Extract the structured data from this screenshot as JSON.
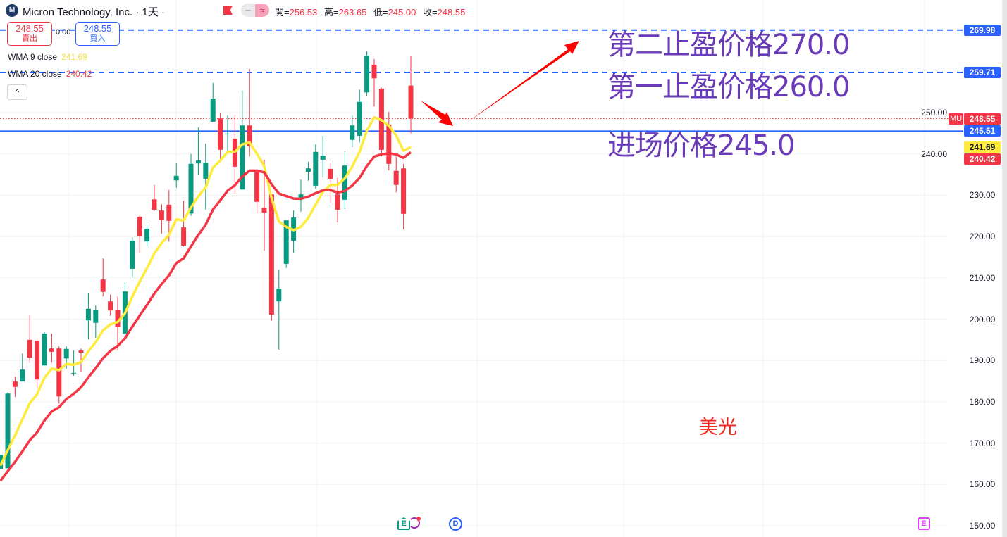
{
  "header": {
    "logo_text": "M",
    "title": "Micron Technology, Inc. · 1天 ·",
    "ohlc": [
      {
        "label": "開=",
        "value": "256.53"
      },
      {
        "label": "高=",
        "value": "263.65"
      },
      {
        "label": "低=",
        "value": "245.00"
      },
      {
        "label": "收=",
        "value": "248.55"
      }
    ],
    "pill_left": "‒",
    "pill_right": "≈"
  },
  "trade": {
    "sell_price": "248.55",
    "sell_label": "賣出",
    "spread": "0.00",
    "buy_price": "248.55",
    "buy_label": "買入"
  },
  "legend": [
    {
      "name": "WMA 9 close",
      "value": "241.69",
      "color": "#ffeb3b"
    },
    {
      "name": "WMA 20 close",
      "value": "240.42",
      "color": "#f23645"
    }
  ],
  "collapse_icon": "^",
  "annotations": {
    "tp2": "第二止盈价格270.0",
    "tp1": "第一止盈价格260.0",
    "entry": "进场价格245.0",
    "name_cn": "美光"
  },
  "price_labels": {
    "symbol": "MU",
    "tp2": "269.98",
    "tp1": "259.71",
    "last": "248.55",
    "entry": "245.51",
    "wma9": "241.69",
    "wma20": "240.42"
  },
  "events": {
    "earnings": "E",
    "dividend": "D",
    "split_earnings": "E"
  },
  "colors": {
    "up": "#089981",
    "down": "#f23645",
    "line": "#2962ff",
    "wma9": "#ffeb3b",
    "wma20": "#f23645",
    "annotation": "#6a3bb8"
  },
  "chart_data": {
    "type": "candlestick",
    "ylim": [
      148,
      272
    ],
    "y_ticks": [
      "150.00",
      "160.00",
      "170.00",
      "180.00",
      "190.00",
      "200.00",
      "210.00",
      "220.00",
      "230.00",
      "240.00",
      "250.00"
    ],
    "grid": true,
    "horizontal_lines": [
      {
        "value": 269.98,
        "style": "dashed"
      },
      {
        "value": 259.71,
        "style": "dashed"
      },
      {
        "value": 245.51,
        "style": "solid"
      },
      {
        "value": 248.55,
        "style": "dotted"
      }
    ],
    "candles": [
      [
        163.8,
        167.2,
        163.8,
        167.2
      ],
      [
        163.9,
        182.3,
        163.9,
        182.0
      ],
      [
        184.9,
        186.1,
        181.2,
        183.6
      ],
      [
        184.9,
        191.7,
        184.9,
        187.8
      ],
      [
        195.0,
        200.9,
        189.4,
        190.7
      ],
      [
        194.8,
        195.3,
        183.2,
        185.4
      ],
      [
        188.8,
        196.8,
        188.8,
        196.5
      ],
      [
        192.9,
        196.5,
        189.5,
        192.1
      ],
      [
        192.9,
        193.4,
        179.5,
        181.3
      ],
      [
        190.5,
        193.4,
        188.0,
        192.8
      ],
      [
        187.0,
        192.4,
        186.3,
        187.0
      ],
      [
        192.4,
        192.9,
        187.3,
        191.9
      ],
      [
        199.7,
        206.4,
        195.1,
        202.5
      ],
      [
        199.1,
        203.3,
        195.5,
        202.3
      ],
      [
        209.6,
        214.7,
        205.5,
        206.6
      ],
      [
        204.3,
        205.9,
        200.8,
        202.1
      ],
      [
        202.3,
        205.5,
        192.4,
        198.2
      ],
      [
        196.5,
        208.9,
        195.5,
        206.7
      ],
      [
        212.2,
        219.8,
        210.0,
        219.0
      ],
      [
        224.8,
        225.0,
        216.0,
        220.0
      ],
      [
        218.8,
        222.9,
        217.6,
        221.9
      ],
      [
        229.0,
        232.5,
        226.2,
        226.5
      ],
      [
        226.3,
        227.8,
        220.7,
        224.0
      ],
      [
        227.7,
        231.3,
        218.8,
        223.8
      ],
      [
        233.6,
        237.7,
        231.8,
        234.7
      ],
      [
        222.2,
        228.7,
        217.6,
        217.8
      ],
      [
        225.6,
        240.0,
        225.0,
        237.6
      ],
      [
        237.7,
        246.4,
        235.0,
        238.4
      ],
      [
        234.0,
        242.5,
        226.5,
        237.9
      ],
      [
        247.8,
        257.2,
        247.8,
        253.4
      ],
      [
        248.6,
        250.0,
        238.8,
        241.0
      ],
      [
        244.9,
        249.3,
        240.8,
        244.9
      ],
      [
        243.7,
        249.5,
        230.4,
        236.9
      ],
      [
        231.4,
        255.3,
        231.4,
        246.9
      ],
      [
        246.9,
        260.6,
        239.4,
        241.8
      ],
      [
        235.7,
        236.4,
        225.6,
        228.4
      ],
      [
        227.0,
        238.6,
        216.6,
        225.8
      ],
      [
        230.2,
        230.2,
        199.7,
        201.1
      ],
      [
        204.3,
        212.0,
        192.6,
        207.4
      ],
      [
        213.4,
        223.9,
        212.4,
        223.9
      ],
      [
        219.0,
        226.3,
        216.1,
        224.6
      ],
      [
        229.4,
        233.8,
        226.0,
        230.2
      ],
      [
        235.7,
        238.1,
        233.5,
        236.5
      ],
      [
        232.3,
        242.3,
        231.6,
        240.5
      ],
      [
        238.6,
        244.4,
        234.3,
        239.6
      ],
      [
        236.4,
        237.9,
        228.0,
        234.0
      ],
      [
        230.2,
        234.2,
        223.4,
        226.5
      ],
      [
        228.9,
        240.6,
        226.7,
        237.2
      ],
      [
        243.4,
        249.3,
        241.7,
        246.9
      ],
      [
        244.4,
        255.6,
        242.8,
        252.6
      ],
      [
        254.9,
        264.8,
        254.1,
        263.8
      ],
      [
        261.6,
        263.0,
        251.5,
        258.3
      ],
      [
        255.8,
        256.0,
        239.4,
        241.0
      ],
      [
        247.1,
        250.2,
        236.0,
        237.6
      ],
      [
        235.9,
        239.4,
        230.7,
        232.5
      ],
      [
        236.5,
        237.6,
        221.7,
        225.5
      ],
      [
        256.53,
        263.65,
        245.0,
        248.55
      ]
    ],
    "series": [
      {
        "name": "WMA 9 close",
        "period": 9,
        "last": 241.69
      },
      {
        "name": "WMA 20 close",
        "period": 20,
        "last": 240.42
      }
    ]
  }
}
